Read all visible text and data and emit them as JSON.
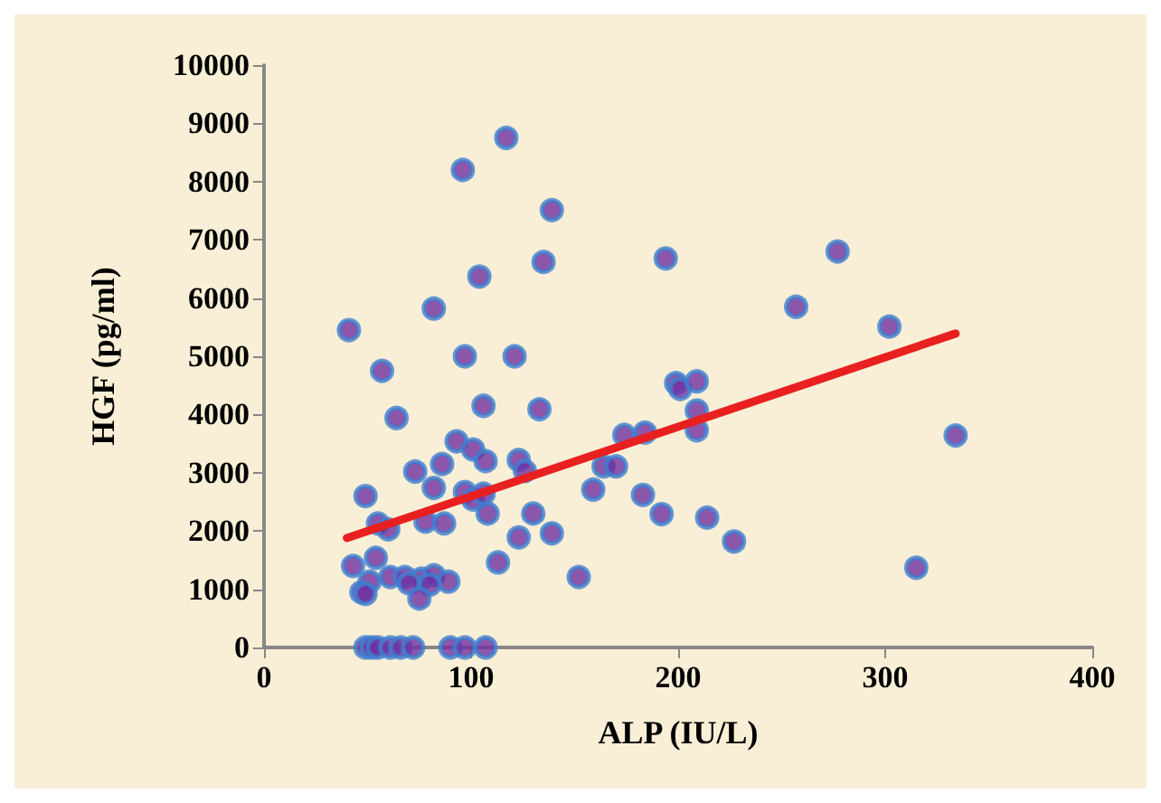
{
  "chart_data": {
    "type": "scatter",
    "xlabel": "ALP (IU/L)",
    "ylabel": "HGF (pg/ml)",
    "xlim": [
      0,
      400
    ],
    "xticks": [
      0,
      100,
      200,
      300,
      400
    ],
    "ylim": [
      0,
      10000
    ],
    "yticks": [
      0,
      1000,
      2000,
      3000,
      4000,
      5000,
      6000,
      7000,
      8000,
      9000,
      10000
    ],
    "grid": false,
    "marker": "circle",
    "series": [
      {
        "color": "#7030a0",
        "x": [
          117,
          96,
          139,
          135,
          104,
          82,
          41,
          97,
          121,
          57,
          106,
          133,
          64,
          93,
          101,
          107,
          123,
          86,
          73,
          126,
          82,
          97,
          49,
          101,
          106,
          108,
          130,
          139,
          55,
          60,
          78,
          87,
          123,
          43,
          54,
          113,
          61,
          68,
          76,
          82,
          89,
          51,
          70,
          80,
          47,
          49,
          75,
          49,
          52,
          55,
          61,
          66,
          72,
          90,
          97,
          107,
          194,
          277,
          257,
          302,
          199,
          201,
          209,
          209,
          174,
          184,
          209,
          334,
          164,
          170,
          159,
          183,
          192,
          214,
          227,
          152,
          315
        ],
        "values": [
          8750,
          8200,
          7510,
          6620,
          6370,
          5820,
          5450,
          5000,
          5000,
          4750,
          4150,
          4090,
          3940,
          3540,
          3400,
          3200,
          3220,
          3150,
          3020,
          3030,
          2740,
          2670,
          2600,
          2540,
          2640,
          2300,
          2300,
          1960,
          2130,
          2030,
          2160,
          2130,
          1890,
          1400,
          1540,
          1460,
          1210,
          1210,
          1180,
          1240,
          1130,
          1130,
          1100,
          1080,
          950,
          920,
          840,
          0,
          0,
          0,
          0,
          0,
          0,
          0,
          0,
          0,
          6680,
          6800,
          5850,
          5510,
          4540,
          4440,
          4570,
          4070,
          3650,
          3690,
          3730,
          3640,
          3110,
          3110,
          2710,
          2620,
          2290,
          2230,
          1820,
          1210,
          1370
        ]
      },
      {
        "type": "line",
        "color": "#e82020",
        "x": [
          40,
          334
        ],
        "values": [
          1880,
          5390
        ],
        "marker": "none"
      }
    ]
  }
}
